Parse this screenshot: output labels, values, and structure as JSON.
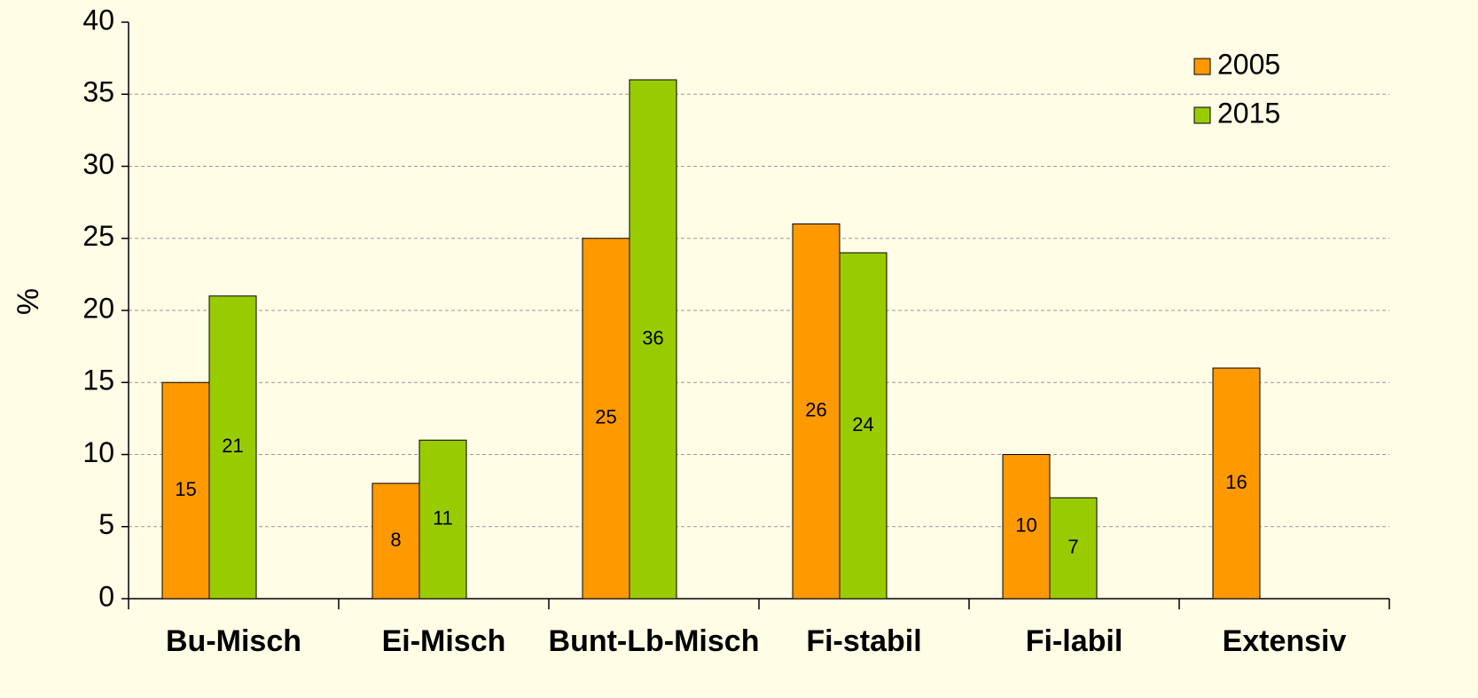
{
  "chart_data": {
    "type": "bar",
    "y_label": "%",
    "categories": [
      "Bu-Misch",
      "Ei-Misch",
      "Bunt-Lb-Misch",
      "Fi-stabil",
      "Fi-labil",
      "Extensiv"
    ],
    "series": [
      {
        "name": "2005",
        "color": "#ff9900",
        "values": [
          15,
          8,
          25,
          26,
          10,
          16
        ]
      },
      {
        "name": "2015",
        "color": "#99cc00",
        "values": [
          21,
          11,
          36,
          24,
          7,
          null
        ]
      }
    ],
    "ylim": [
      0,
      40
    ],
    "yticks": [
      0,
      5,
      10,
      15,
      20,
      25,
      30,
      35,
      40
    ],
    "grid": true,
    "legend": "top-right"
  }
}
